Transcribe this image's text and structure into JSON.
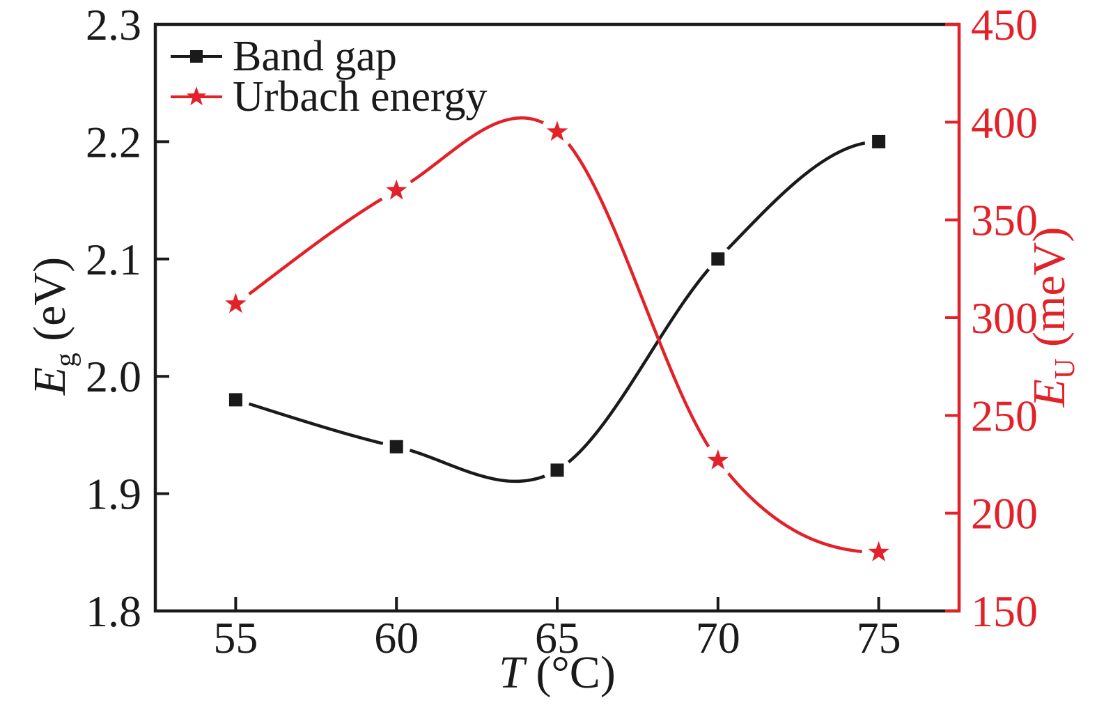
{
  "figure": {
    "background": "#ffffff",
    "frame_color": "#1a1a1a"
  },
  "chart_data": {
    "type": "line",
    "x": [
      55,
      60,
      65,
      70,
      75
    ],
    "x_axis": {
      "label": "T (°C)",
      "min": 52.5,
      "max": 77.5,
      "tick_labels": [
        "55",
        "60",
        "65",
        "70",
        "75"
      ]
    },
    "left_axis": {
      "label": "Eg (eV)",
      "min": 1.8,
      "max": 2.3,
      "tick_labels": [
        "1.8",
        "1.9",
        "2.0",
        "2.1",
        "2.2",
        "2.3"
      ],
      "color": "#1a1a1a"
    },
    "right_axis": {
      "label": "EU (meV)",
      "min": 150,
      "max": 450,
      "tick_labels": [
        "150",
        "200",
        "250",
        "300",
        "350",
        "400",
        "450"
      ],
      "color": "#e22128"
    },
    "series": [
      {
        "name": "Band gap",
        "axis": "left",
        "color": "#1a1a1a",
        "marker": "square",
        "values": [
          1.98,
          1.94,
          1.92,
          2.1,
          2.2
        ]
      },
      {
        "name": "Urbach energy",
        "axis": "right",
        "color": "#e22128",
        "marker": "star",
        "values": [
          307,
          365,
          395,
          227,
          180
        ]
      }
    ],
    "grid": false,
    "legend_position": "top-left-inside"
  },
  "axes_labels": {
    "left": {
      "symbol": "E",
      "sub": "g",
      "unit": " (eV)"
    },
    "right": {
      "symbol": "E",
      "sub": "U",
      "unit": " (meV)"
    },
    "bottom": {
      "symbol": "T",
      "unit": " (°C)"
    }
  }
}
